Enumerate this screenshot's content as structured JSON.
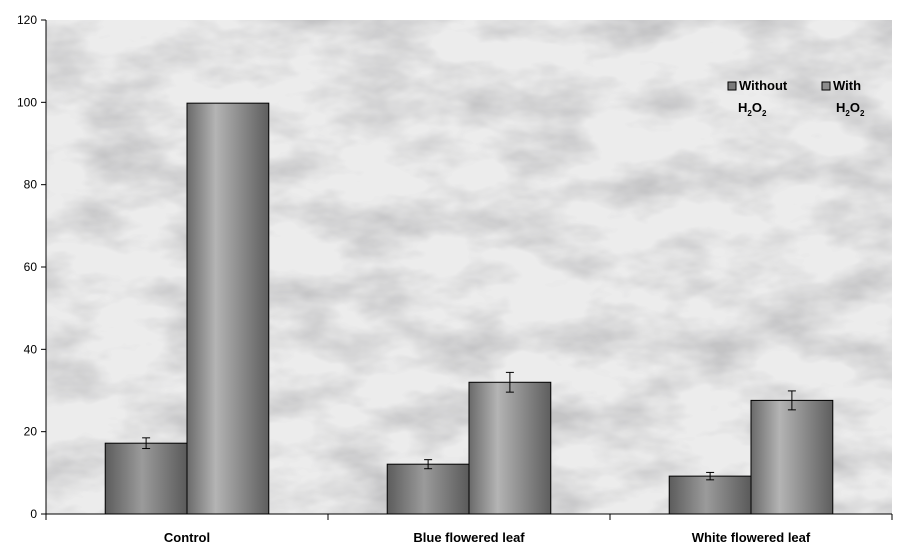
{
  "chart_data": {
    "type": "bar",
    "categories": [
      "Control",
      "Blue flowered leaf",
      "White flowered leaf"
    ],
    "series": [
      {
        "name": "Without H2O2",
        "legend_line1": "Without",
        "legend_main": "H",
        "legend_sub1": "2",
        "legend_mid": "O",
        "legend_sub2": "2",
        "values": [
          17.2,
          12.1,
          9.2
        ],
        "errors": [
          1.3,
          1.1,
          0.9
        ],
        "color": "#7a7a7a"
      },
      {
        "name": "With H2O2",
        "legend_line1": "With",
        "legend_main": "H",
        "legend_sub1": "2",
        "legend_mid": "O",
        "legend_sub2": "2",
        "values": [
          99.8,
          32.0,
          27.6
        ],
        "errors": [
          0,
          2.4,
          2.3
        ],
        "color": "#8c8c8c"
      }
    ],
    "ylim": [
      0,
      120
    ],
    "yticks": [
      "0",
      "20",
      "40",
      "60",
      "80",
      "100",
      "120"
    ],
    "title": "",
    "xlabel": "",
    "ylabel": "",
    "legend_position": "top-right",
    "grid": false,
    "background": "marble texture"
  }
}
